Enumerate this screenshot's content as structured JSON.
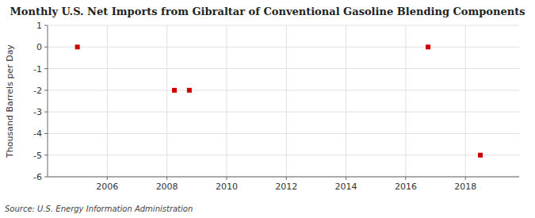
{
  "chart_data": {
    "type": "scatter",
    "title": "Monthly U.S. Net Imports from Gibraltar of Conventional Gasoline Blending Components",
    "ylabel": "Thousand Barrels per Day",
    "annotations": [
      "Source: U.S. Energy Information Administration"
    ],
    "x": [
      2005.0,
      2008.25,
      2008.75,
      2016.75,
      2018.5
    ],
    "values": [
      0.0,
      -2.0,
      -2.0,
      0.0,
      -5.0
    ],
    "color": "#cc0000",
    "marker": "square",
    "xlim": [
      2004.0,
      2019.8
    ],
    "ylim": [
      -6,
      1
    ],
    "xticks": [
      2006,
      2008,
      2010,
      2012,
      2014,
      2016,
      2018
    ],
    "yticks": [
      1,
      0,
      -1,
      -2,
      -3,
      -4,
      -5,
      -6
    ],
    "grid": true
  }
}
